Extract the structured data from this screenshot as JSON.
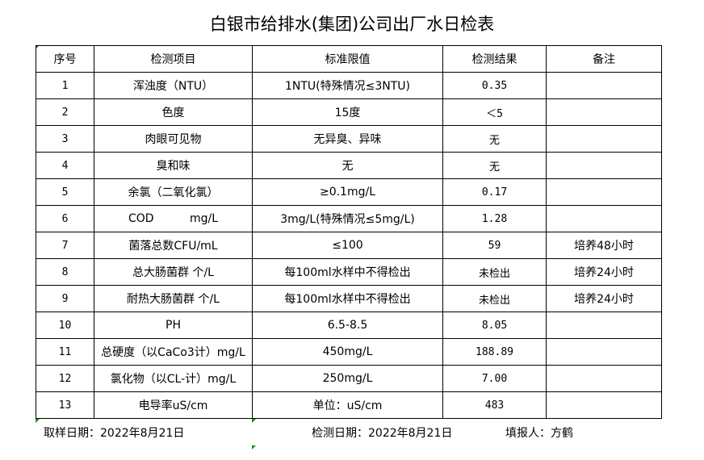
{
  "title": "白银市给排水(集团)公司出厂水日检表",
  "headers": [
    "序号",
    "检测项目",
    "标准限值",
    "检测结果",
    "备注"
  ],
  "rows": [
    [
      "1",
      "浑浊度（NTU）",
      "1NTU(特殊情况≤3NTU)",
      "0.35",
      ""
    ],
    [
      "2",
      "色度",
      "15度",
      "＜5",
      ""
    ],
    [
      "3",
      "肉眼可见物",
      "无异臭、异味",
      "无",
      ""
    ],
    [
      "4",
      "臭和味",
      "无",
      "无",
      ""
    ],
    [
      "5",
      "余氯（二氧化氯）",
      "≥0.1mg/L",
      "0.17",
      ""
    ],
    [
      "6",
      "COD          mg/L",
      "3mg/L(特殊情况≤5mg/L)",
      "1.28",
      ""
    ],
    [
      "7",
      "菌落总数CFU/mL",
      "≤100",
      "59",
      "培养48小时"
    ],
    [
      "8",
      "总大肠菌群 个/L",
      "每100ml水样中不得检出",
      "未检出",
      "培养24小时"
    ],
    [
      "9",
      "耐热大肠菌群 个/L",
      "每100ml水样中不得检出",
      "未检出",
      "培养24小时"
    ],
    [
      "10",
      "PH",
      "6.5-8.5",
      "8.05",
      ""
    ],
    [
      "11",
      "总硬度（以CaCo3计）mg/L",
      "450mg/L",
      "188.89",
      ""
    ],
    [
      "12",
      "氯化物（以CL-计）mg/L",
      "250mg/L",
      "7.00",
      ""
    ],
    [
      "13",
      "电导率uS/cm",
      "单位：uS/cm",
      "483",
      ""
    ]
  ],
  "footer": {
    "sample_date": "取样日期：2022年8月21日",
    "test_date": "检测日期：2022年8月21日",
    "reporter": "填报人：方鹤"
  }
}
